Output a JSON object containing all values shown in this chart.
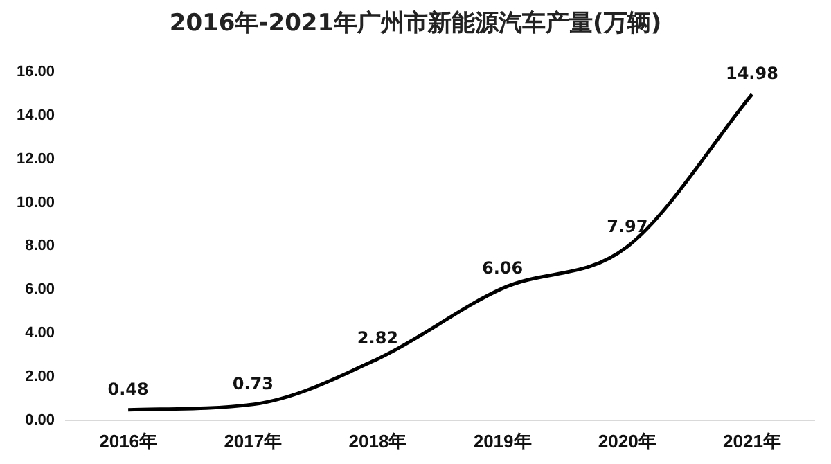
{
  "chart_data": {
    "type": "line",
    "title": "2016年-2021年广州市新能源汽车产量(万辆)",
    "categories": [
      "2016年",
      "2017年",
      "2018年",
      "2019年",
      "2020年",
      "2021年"
    ],
    "series": [
      {
        "color": "#000000",
        "values": [
          0.48,
          0.73,
          2.82,
          6.06,
          7.97,
          14.98
        ]
      }
    ],
    "ylim": [
      0,
      16
    ],
    "yticks": [
      {
        "value": 0,
        "label": "0.00"
      },
      {
        "value": 2,
        "label": "2.00"
      },
      {
        "value": 4,
        "label": "4.00"
      },
      {
        "value": 6,
        "label": "6.00"
      },
      {
        "value": 8,
        "label": "8.00"
      },
      {
        "value": 10,
        "label": "10.00"
      },
      {
        "value": 12,
        "label": "12.00"
      },
      {
        "value": 14,
        "label": "14.00"
      },
      {
        "value": 16,
        "label": "16.00"
      }
    ],
    "grid": false,
    "legend": false,
    "marker": "none",
    "line_style": "solid",
    "data_labels": true
  }
}
